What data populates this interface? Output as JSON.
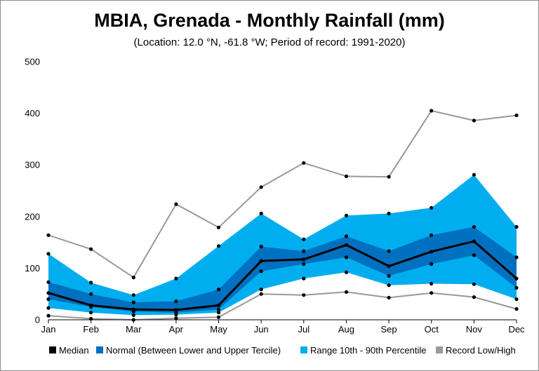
{
  "chart_data": {
    "type": "area",
    "title": "MBIA, Grenada - Monthly Rainfall (mm)",
    "subtitle": "(Location: 12.0 °N, -61.8 °W; Period of record: 1991-2020)",
    "categories": [
      "Jan",
      "Feb",
      "Mar",
      "Apr",
      "May",
      "Jun",
      "Jul",
      "Aug",
      "Sep",
      "Oct",
      "Nov",
      "Dec"
    ],
    "ylim": [
      0,
      500
    ],
    "yticks": [
      0,
      100,
      200,
      300,
      400,
      500
    ],
    "grid": false,
    "legend_position": "bottom",
    "series": [
      {
        "name": "Record Low/High",
        "role": "record_high",
        "color": "#999999",
        "values": [
          164,
          137,
          82,
          224,
          179,
          257,
          304,
          278,
          277,
          405,
          386,
          396
        ]
      },
      {
        "name": "Record Low/High",
        "role": "record_low",
        "color": "#999999",
        "values": [
          8,
          2,
          0,
          3,
          5,
          50,
          48,
          54,
          43,
          52,
          44,
          21
        ]
      },
      {
        "name": "Range 10th - 90th Percentile",
        "role": "p90",
        "color": "#00aeef",
        "values": [
          128,
          72,
          48,
          80,
          143,
          206,
          156,
          202,
          206,
          217,
          281,
          180
        ]
      },
      {
        "name": "Range 10th - 90th Percentile",
        "role": "p10",
        "color": "#00aeef",
        "values": [
          23,
          14,
          9,
          10,
          14,
          59,
          80,
          92,
          67,
          70,
          69,
          40
        ]
      },
      {
        "name": "Normal (Between Lower and Upper Tercile)",
        "role": "upper_tercile",
        "color": "#0070c0",
        "values": [
          73,
          50,
          34,
          36,
          59,
          142,
          133,
          162,
          133,
          164,
          180,
          121
        ]
      },
      {
        "name": "Normal (Between Lower and Upper Tercile)",
        "role": "lower_tercile",
        "color": "#0070c0",
        "values": [
          40,
          25,
          16,
          14,
          20,
          94,
          108,
          121,
          85,
          108,
          125,
          62
        ]
      },
      {
        "name": "Median",
        "role": "median",
        "color": "#000000",
        "values": [
          52,
          28,
          20,
          19,
          28,
          114,
          117,
          145,
          104,
          132,
          152,
          80
        ]
      }
    ],
    "legend": [
      {
        "label": "Median",
        "color": "#000000"
      },
      {
        "label": "Normal (Between Lower and Upper Tercile)",
        "color": "#0070c0"
      },
      {
        "label": "Range 10th - 90th Percentile",
        "color": "#00aeef"
      },
      {
        "label": "Record Low/High",
        "color": "#999999"
      }
    ]
  }
}
